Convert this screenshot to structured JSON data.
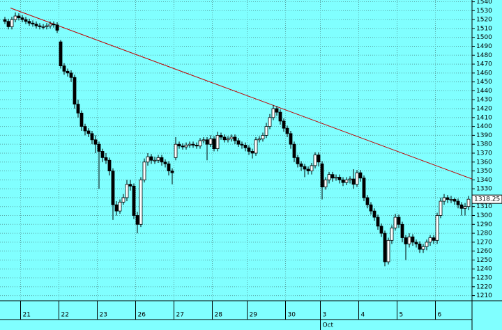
{
  "chart_data": {
    "type": "candlestick",
    "categories": [
      null,
      null,
      null,
      null,
      null,
      "21",
      null,
      null,
      null,
      null,
      null,
      null,
      null,
      null,
      null,
      null,
      "22",
      null,
      null,
      null,
      null,
      null,
      null,
      null,
      null,
      null,
      null,
      "23",
      null,
      null,
      null,
      null,
      null,
      null,
      null,
      null,
      null,
      null,
      "26",
      null,
      null,
      null,
      null,
      null,
      null,
      null,
      null,
      null,
      null,
      "27",
      null,
      null,
      null,
      null,
      null,
      null,
      null,
      null,
      null,
      null,
      "28",
      null,
      null,
      null,
      null,
      null,
      null,
      null,
      null,
      null,
      "29",
      null,
      null,
      null,
      null,
      null,
      null,
      null,
      null,
      null,
      null,
      "30",
      null,
      null,
      null,
      null,
      null,
      null,
      null,
      null,
      null,
      "3",
      null,
      null,
      null,
      null,
      null,
      null,
      null,
      null,
      null,
      null,
      "4",
      null,
      null,
      null,
      null,
      null,
      null,
      null,
      null,
      null,
      null,
      "5",
      null,
      null,
      null,
      null,
      null,
      null,
      null,
      null,
      null,
      null,
      "6",
      null,
      null,
      null,
      null,
      null,
      null,
      null,
      null,
      null
    ],
    "months": [
      {
        "label": "Oct",
        "category": "3"
      }
    ],
    "open": [
      1520,
      1518,
      1512,
      1520,
      1524,
      1522,
      1520,
      1518,
      1516,
      1515,
      1513,
      1512,
      1512,
      1513,
      1515,
      1514,
      1495,
      1468,
      1462,
      1460,
      1455,
      1425,
      1415,
      1400,
      1395,
      1392,
      1385,
      1380,
      1372,
      1365,
      1362,
      1350,
      1312,
      1305,
      1315,
      1320,
      1335,
      1333,
      1300,
      1290,
      1340,
      1360,
      1366,
      1362,
      1362,
      1365,
      1360,
      1358,
      1350,
      1365,
      1380,
      1378,
      1377,
      1379,
      1380,
      1379,
      1378,
      1384,
      1385,
      1380,
      1386,
      1375,
      1390,
      1388,
      1385,
      1386,
      1388,
      1384,
      1380,
      1379,
      1376,
      1372,
      1370,
      1385,
      1386,
      1390,
      1400,
      1410,
      1420,
      1416,
      1406,
      1398,
      1392,
      1380,
      1365,
      1358,
      1355,
      1352,
      1350,
      1356,
      1368,
      1358,
      1332,
      1340,
      1346,
      1342,
      1343,
      1340,
      1337,
      1340,
      1341,
      1335,
      1348,
      1342,
      1320,
      1312,
      1305,
      1298,
      1288,
      1280,
      1248,
      1272,
      1286,
      1298,
      1290,
      1275,
      1268,
      1276,
      1270,
      1268,
      1262,
      1265,
      1270,
      1275,
      1272,
      1300,
      1316,
      1320,
      1318,
      1318,
      1316,
      1312,
      1308,
      1310
    ],
    "high": [
      1523,
      1521,
      1523,
      1528,
      1527,
      1525,
      1523,
      1521,
      1519,
      1518,
      1516,
      1515,
      1516,
      1518,
      1518,
      1517,
      1497,
      1471,
      1465,
      1463,
      1458,
      1430,
      1418,
      1403,
      1398,
      1395,
      1390,
      1383,
      1375,
      1370,
      1365,
      1353,
      1316,
      1318,
      1324,
      1340,
      1340,
      1336,
      1304,
      1343,
      1364,
      1370,
      1369,
      1366,
      1368,
      1368,
      1363,
      1361,
      1353,
      1388,
      1383,
      1381,
      1382,
      1383,
      1383,
      1382,
      1387,
      1388,
      1388,
      1390,
      1389,
      1394,
      1393,
      1391,
      1389,
      1391,
      1391,
      1387,
      1383,
      1382,
      1379,
      1375,
      1388,
      1389,
      1393,
      1404,
      1414,
      1424,
      1423,
      1419,
      1409,
      1401,
      1395,
      1383,
      1368,
      1361,
      1358,
      1355,
      1359,
      1371,
      1371,
      1361,
      1343,
      1349,
      1349,
      1346,
      1346,
      1343,
      1343,
      1344,
      1352,
      1351,
      1351,
      1345,
      1323,
      1315,
      1308,
      1301,
      1291,
      1283,
      1275,
      1289,
      1302,
      1301,
      1293,
      1278,
      1280,
      1279,
      1273,
      1271,
      1268,
      1273,
      1278,
      1278,
      1303,
      1320,
      1324,
      1323,
      1322,
      1320,
      1319,
      1315,
      1314,
      1322
    ],
    "low": [
      1515,
      1509,
      1509,
      1517,
      1519,
      1517,
      1515,
      1513,
      1512,
      1510,
      1509,
      1509,
      1509,
      1510,
      1511,
      1505,
      1465,
      1458,
      1456,
      1450,
      1420,
      1410,
      1395,
      1390,
      1388,
      1380,
      1370,
      1330,
      1360,
      1358,
      1345,
      1295,
      1300,
      1302,
      1312,
      1316,
      1328,
      1296,
      1280,
      1287,
      1337,
      1356,
      1358,
      1358,
      1359,
      1356,
      1354,
      1345,
      1335,
      1362,
      1375,
      1374,
      1374,
      1376,
      1376,
      1375,
      1375,
      1381,
      1362,
      1377,
      1372,
      1372,
      1385,
      1382,
      1382,
      1383,
      1380,
      1377,
      1375,
      1372,
      1368,
      1364,
      1367,
      1382,
      1383,
      1387,
      1397,
      1407,
      1412,
      1402,
      1394,
      1388,
      1375,
      1360,
      1354,
      1350,
      1343,
      1346,
      1346,
      1353,
      1355,
      1318,
      1329,
      1336,
      1338,
      1339,
      1336,
      1333,
      1334,
      1336,
      1330,
      1332,
      1338,
      1316,
      1308,
      1301,
      1294,
      1284,
      1276,
      1243,
      1245,
      1268,
      1283,
      1286,
      1270,
      1250,
      1264,
      1266,
      1264,
      1258,
      1258,
      1261,
      1266,
      1268,
      1268,
      1297,
      1312,
      1314,
      1314,
      1312,
      1308,
      1300,
      1300,
      1306
    ],
    "close": [
      1518,
      1512,
      1520,
      1524,
      1522,
      1520,
      1518,
      1516,
      1515,
      1513,
      1512,
      1512,
      1513,
      1515,
      1514,
      1508,
      1468,
      1462,
      1460,
      1455,
      1425,
      1415,
      1400,
      1395,
      1392,
      1385,
      1380,
      1372,
      1365,
      1362,
      1350,
      1312,
      1305,
      1315,
      1320,
      1335,
      1333,
      1300,
      1290,
      1340,
      1360,
      1366,
      1362,
      1362,
      1365,
      1360,
      1358,
      1350,
      1348,
      1380,
      1378,
      1377,
      1379,
      1380,
      1379,
      1378,
      1384,
      1385,
      1380,
      1386,
      1375,
      1390,
      1388,
      1385,
      1386,
      1388,
      1384,
      1380,
      1379,
      1376,
      1372,
      1370,
      1385,
      1386,
      1390,
      1400,
      1410,
      1420,
      1416,
      1406,
      1398,
      1392,
      1380,
      1365,
      1358,
      1355,
      1352,
      1350,
      1356,
      1368,
      1360,
      1332,
      1340,
      1346,
      1342,
      1343,
      1340,
      1337,
      1340,
      1341,
      1335,
      1348,
      1342,
      1320,
      1312,
      1305,
      1298,
      1288,
      1280,
      1248,
      1272,
      1286,
      1298,
      1290,
      1275,
      1268,
      1276,
      1270,
      1268,
      1262,
      1265,
      1270,
      1275,
      1272,
      1300,
      1316,
      1320,
      1318,
      1318,
      1316,
      1312,
      1308,
      1310,
      1318.25
    ],
    "up_color": "#ffffff",
    "down_color": "#000000",
    "trendline": {
      "x": [
        1.6,
        134
      ],
      "y": [
        1533,
        1341
      ],
      "color": "#c00000"
    },
    "ylim": [
      1205,
      1542
    ],
    "yticks": [
      1210,
      1220,
      1230,
      1240,
      1250,
      1260,
      1270,
      1280,
      1290,
      1300,
      1310,
      1320,
      1330,
      1340,
      1350,
      1360,
      1370,
      1380,
      1390,
      1400,
      1410,
      1420,
      1430,
      1440,
      1450,
      1460,
      1470,
      1480,
      1490,
      1500,
      1510,
      1520,
      1530,
      1540
    ],
    "grid": true
  }
}
